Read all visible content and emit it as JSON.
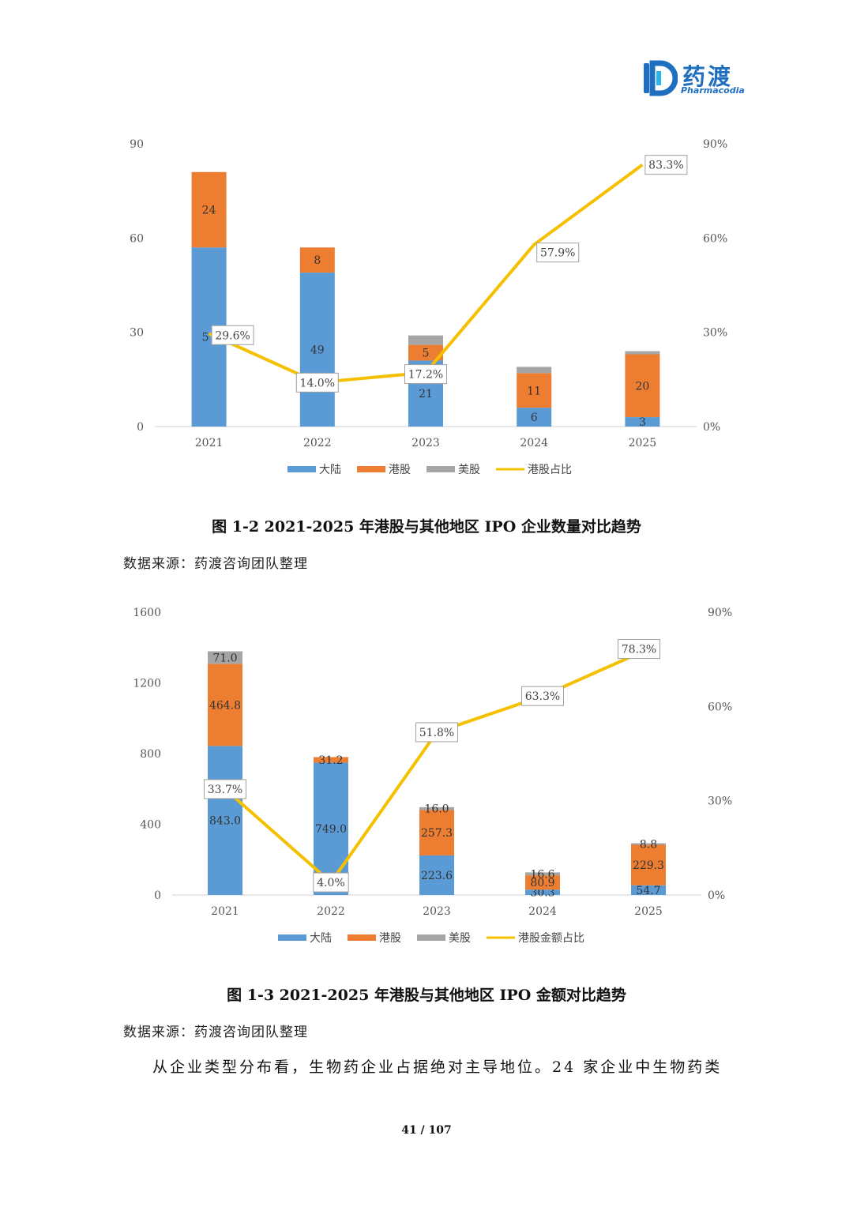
{
  "logo": {
    "name": "药渡",
    "sub": "Pharmacodia"
  },
  "chart_data": [
    {
      "type": "bar",
      "stacked": true,
      "categories": [
        "2021",
        "2022",
        "2023",
        "2024",
        "2025"
      ],
      "ylim": [
        0,
        90
      ],
      "yticks": [
        "0",
        "30",
        "60",
        "90"
      ],
      "y2lim": [
        0,
        0.9
      ],
      "y2ticks": [
        "0%",
        "30%",
        "60%",
        "90%"
      ],
      "grid": false,
      "legend_position": "bottom",
      "series": [
        {
          "name": "大陆",
          "color": "#5b9bd5",
          "values": [
            57,
            49,
            21,
            6,
            3
          ],
          "labels": [
            "57",
            "49",
            "21",
            "6",
            "3"
          ]
        },
        {
          "name": "港股",
          "color": "#ed7d31",
          "values": [
            24,
            8,
            5,
            11,
            20
          ],
          "labels": [
            "24",
            "8",
            "5",
            "11",
            "20"
          ]
        },
        {
          "name": "美股",
          "color": "#a5a5a5",
          "values": [
            0,
            0,
            3,
            2,
            1
          ],
          "labels": [
            "",
            "",
            "",
            "",
            ""
          ]
        }
      ],
      "line": {
        "name": "港股占比",
        "color": "#f5c000",
        "axis": "right",
        "values": [
          0.296,
          0.14,
          0.172,
          0.579,
          0.833
        ],
        "labels": [
          "29.6%",
          "14.0%",
          "17.2%",
          "57.9%",
          "83.3%"
        ]
      }
    },
    {
      "type": "bar",
      "stacked": true,
      "categories": [
        "2021",
        "2022",
        "2023",
        "2024",
        "2025"
      ],
      "ylim": [
        0,
        1600
      ],
      "yticks": [
        "0",
        "400",
        "800",
        "1200",
        "1600"
      ],
      "y2lim": [
        0,
        0.9
      ],
      "y2ticks": [
        "0%",
        "30%",
        "60%",
        "90%"
      ],
      "grid": false,
      "legend_position": "bottom",
      "series": [
        {
          "name": "大陆",
          "color": "#5b9bd5",
          "values": [
            843.0,
            749.0,
            223.6,
            30.3,
            54.7
          ],
          "labels": [
            "843.0",
            "749.0",
            "223.6",
            "30.3",
            "54.7"
          ]
        },
        {
          "name": "港股",
          "color": "#ed7d31",
          "values": [
            464.8,
            31.2,
            257.3,
            80.9,
            229.3
          ],
          "labels": [
            "464.8",
            "31.2",
            "257.3",
            "80.9",
            "229.3"
          ]
        },
        {
          "name": "美股",
          "color": "#a5a5a5",
          "values": [
            71.0,
            0,
            16.0,
            16.6,
            8.8
          ],
          "labels": [
            "71.0",
            "",
            "16.0",
            "16.6",
            "8.8"
          ]
        }
      ],
      "line": {
        "name": "港股金额占比",
        "color": "#f5c000",
        "axis": "right",
        "values": [
          0.337,
          0.04,
          0.518,
          0.633,
          0.783
        ],
        "labels": [
          "33.7%",
          "4.0%",
          "51.8%",
          "63.3%",
          "78.3%"
        ]
      }
    }
  ],
  "captions": {
    "fig1": "图 1-2 2021-2025 年港股与其他地区 IPO 企业数量对比趋势",
    "fig2": "图 1-3 2021-2025 年港股与其他地区 IPO 金额对比趋势"
  },
  "sources": {
    "fig1": "数据来源：药渡咨询团队整理",
    "fig2": "数据来源：药渡咨询团队整理"
  },
  "paragraph": "从企业类型分布看，生物药企业占据绝对主导地位。24 家企业中生物药类",
  "page_number": "41 / 107"
}
